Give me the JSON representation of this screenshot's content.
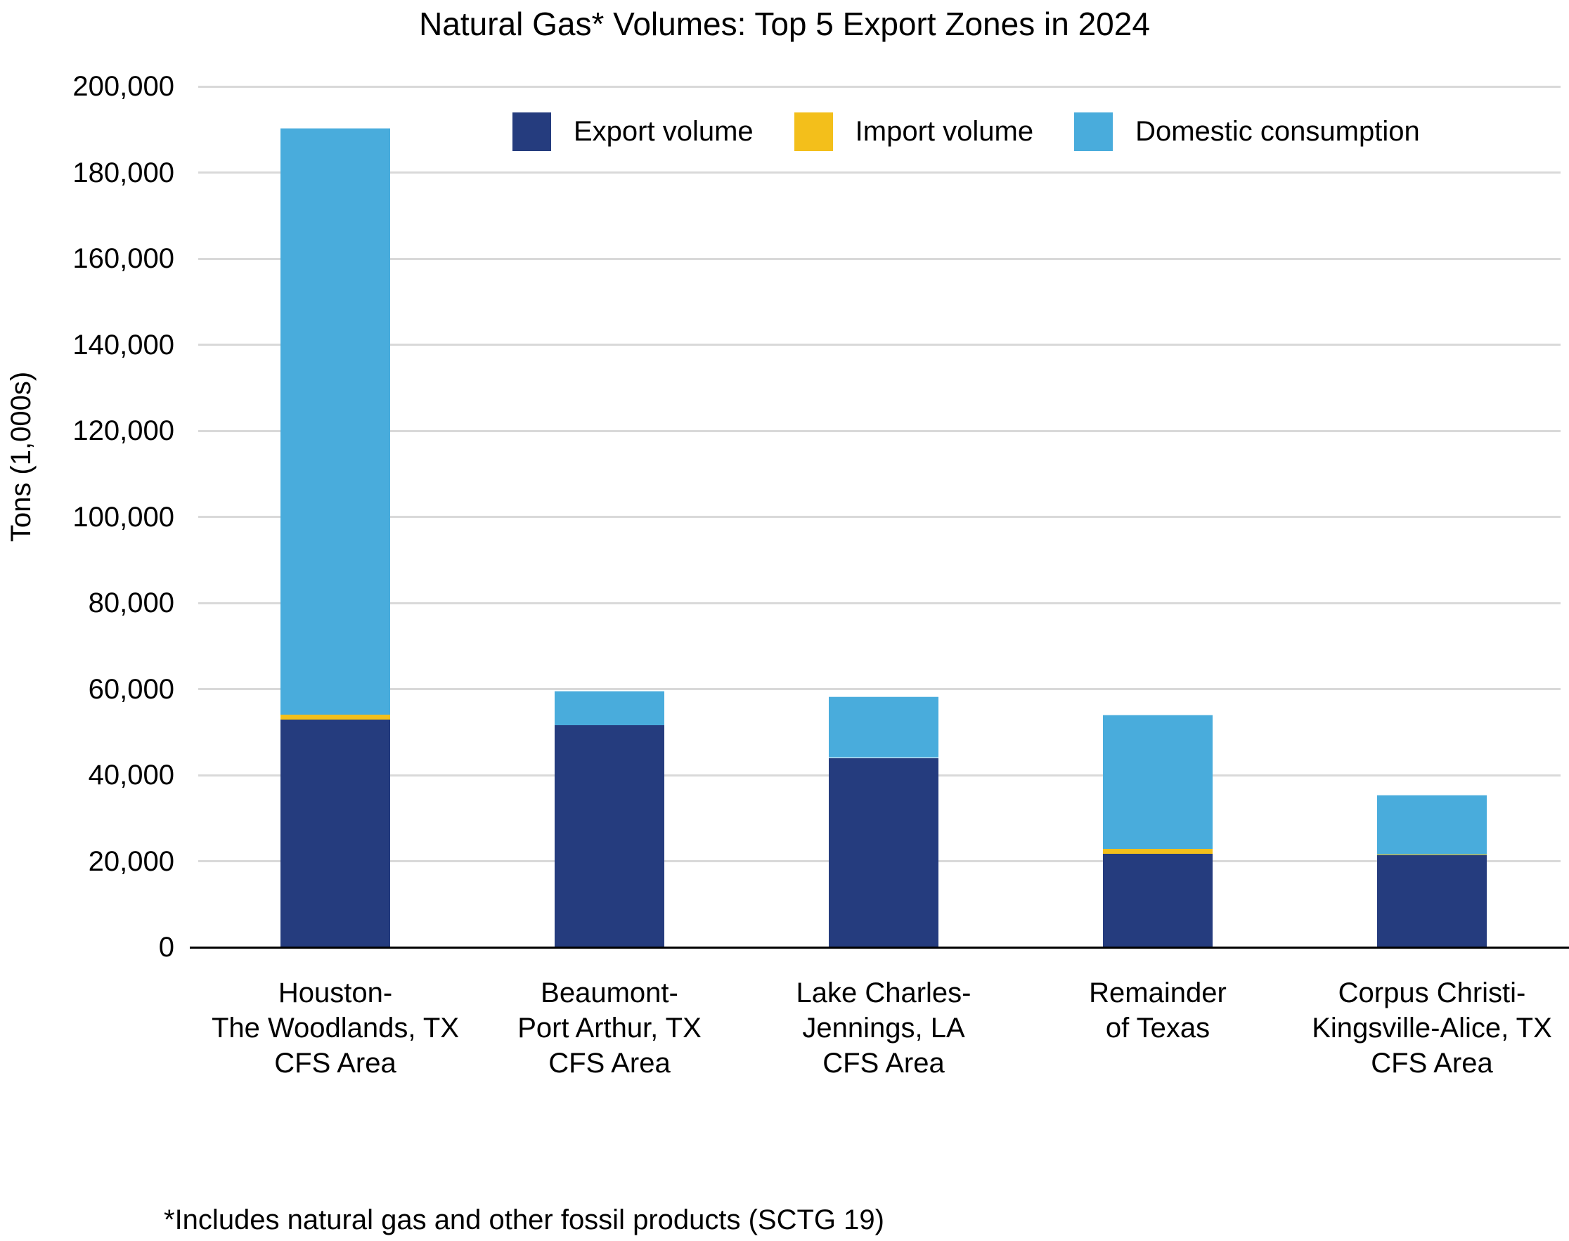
{
  "chart_data": {
    "type": "bar",
    "stacked": true,
    "title": "Natural Gas* Volumes: Top 5 Export Zones in 2024",
    "ylabel": "Tons (1,000s)",
    "xlabel": "",
    "ylim": [
      0,
      200000
    ],
    "ytick_step": 20000,
    "ytick_labels": [
      "0",
      "20,000",
      "40,000",
      "60,000",
      "80,000",
      "100,000",
      "120,000",
      "140,000",
      "160,000",
      "180,000",
      "200,000"
    ],
    "grid": "horizontal",
    "legend_position": "top-inside",
    "categories": [
      [
        "Houston-",
        "The Woodlands, TX",
        "CFS Area"
      ],
      [
        "Beaumont-",
        "Port Arthur, TX",
        "CFS Area"
      ],
      [
        "Lake Charles-",
        "Jennings, LA",
        "CFS Area"
      ],
      [
        "Remainder",
        "of Texas"
      ],
      [
        "Corpus Christi-",
        "Kingsville-Alice, TX",
        "CFS Area"
      ]
    ],
    "series": [
      {
        "name": "Export volume",
        "color": "#253C7E",
        "values": [
          53000,
          51800,
          44000,
          21900,
          21400
        ]
      },
      {
        "name": "Import volume",
        "color": "#F3BF1B",
        "values": [
          1200,
          0,
          300,
          1200,
          250
        ]
      },
      {
        "name": "Domestic consumption",
        "color": "#49ACDC",
        "values": [
          136200,
          7800,
          14000,
          30900,
          13850
        ]
      }
    ],
    "totals": [
      190400,
      59600,
      58300,
      54000,
      35500
    ],
    "footnote": "*Includes natural gas and other fossil products (SCTG 19)"
  }
}
